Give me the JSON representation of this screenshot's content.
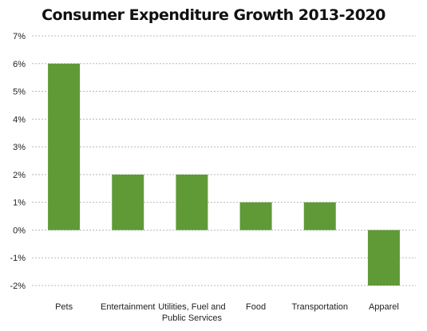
{
  "chart_data": {
    "type": "bar",
    "title": "Consumer Expenditure Growth 2013-2020",
    "xlabel": "",
    "ylabel": "",
    "categories": [
      "Pets",
      "Entertainment",
      "Utilities, Fuel and Public Services",
      "Food",
      "Transportation",
      "Apparel"
    ],
    "category_labels": [
      [
        "Pets"
      ],
      [
        "Entertainment"
      ],
      [
        "Utilities, Fuel and",
        "Public Services"
      ],
      [
        "Food"
      ],
      [
        "Transportation"
      ],
      [
        "Apparel"
      ]
    ],
    "values": [
      6,
      2,
      2,
      1,
      1,
      -2
    ],
    "ylim": [
      -2,
      7
    ],
    "yticks": [
      -2,
      -1,
      0,
      1,
      2,
      3,
      4,
      5,
      6,
      7
    ],
    "ytick_labels": [
      "-2%",
      "-1%",
      "0%",
      "1%",
      "2%",
      "3%",
      "4%",
      "5%",
      "6%",
      "7%"
    ],
    "grid": true,
    "legend": "none",
    "colors": {
      "bar": "#5f9a36",
      "grid": "#b8b8b8",
      "text": "#222222"
    }
  }
}
